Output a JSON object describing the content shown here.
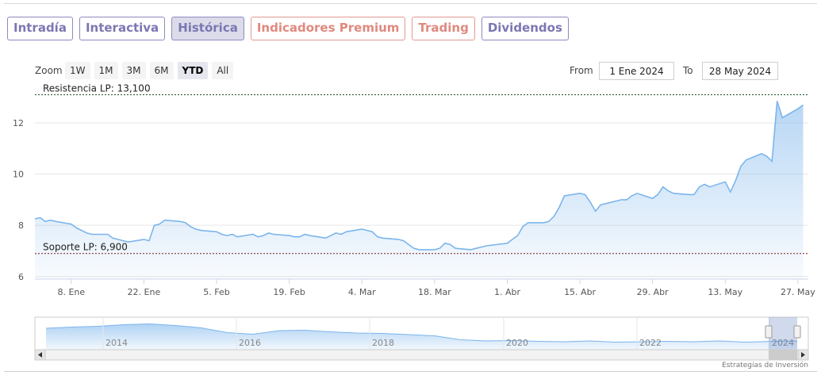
{
  "tabs": [
    {
      "label": "Intradía",
      "style": "normal"
    },
    {
      "label": "Interactiva",
      "style": "normal"
    },
    {
      "label": "Histórica",
      "style": "active"
    },
    {
      "label": "Indicadores Premium",
      "style": "premium"
    },
    {
      "label": "Trading",
      "style": "premium"
    },
    {
      "label": "Dividendos",
      "style": "normal"
    }
  ],
  "zoom": {
    "label": "Zoom",
    "buttons": [
      "1W",
      "1M",
      "3M",
      "6M",
      "YTD",
      "All"
    ],
    "selected": "YTD"
  },
  "range": {
    "from_label": "From",
    "from_value": "1 Ene 2024",
    "to_label": "To",
    "to_value": "28 May 2024"
  },
  "colors": {
    "line": "#7cb5ec",
    "tab_border": "#8e8ac0",
    "premium_tab": "#e0897f",
    "resistance_line": "#1f4f2a",
    "support_line": "#7a1a1a"
  },
  "chart_data": {
    "type": "area",
    "title": "",
    "xlabel": "",
    "ylabel": "",
    "ylim": [
      5.9,
      13.3
    ],
    "x_range": [
      "2024-01-01",
      "2024-05-29"
    ],
    "yticks": [
      6,
      8,
      10,
      12
    ],
    "x_tick_labels": [
      {
        "date": "2024-01-08",
        "label": "8. Ene"
      },
      {
        "date": "2024-01-22",
        "label": "22. Ene"
      },
      {
        "date": "2024-02-05",
        "label": "5. Feb"
      },
      {
        "date": "2024-02-19",
        "label": "19. Feb"
      },
      {
        "date": "2024-03-04",
        "label": "4. Mar"
      },
      {
        "date": "2024-03-18",
        "label": "18. Mar"
      },
      {
        "date": "2024-04-01",
        "label": "1. Abr"
      },
      {
        "date": "2024-04-15",
        "label": "15. Abr"
      },
      {
        "date": "2024-04-29",
        "label": "29. Abr"
      },
      {
        "date": "2024-05-13",
        "label": "13. May"
      },
      {
        "date": "2024-05-27",
        "label": "27. May"
      }
    ],
    "grid": true,
    "legend": "none",
    "annotations": [
      {
        "label": "Resistencia LP: 13,100",
        "value": 13.1
      },
      {
        "label": "Soporte LP: 6,900",
        "value": 6.9
      }
    ],
    "series": [
      {
        "points": [
          [
            "2024-01-01",
            8.25
          ],
          [
            "2024-01-02",
            8.3
          ],
          [
            "2024-01-03",
            8.15
          ],
          [
            "2024-01-04",
            8.2
          ],
          [
            "2024-01-05",
            8.15
          ],
          [
            "2024-01-08",
            8.05
          ],
          [
            "2024-01-09",
            7.9
          ],
          [
            "2024-01-10",
            7.8
          ],
          [
            "2024-01-11",
            7.7
          ],
          [
            "2024-01-12",
            7.65
          ],
          [
            "2024-01-15",
            7.65
          ],
          [
            "2024-01-16",
            7.5
          ],
          [
            "2024-01-17",
            7.45
          ],
          [
            "2024-01-18",
            7.4
          ],
          [
            "2024-01-19",
            7.35
          ],
          [
            "2024-01-22",
            7.45
          ],
          [
            "2024-01-23",
            7.4
          ],
          [
            "2024-01-24",
            8.0
          ],
          [
            "2024-01-25",
            8.05
          ],
          [
            "2024-01-26",
            8.2
          ],
          [
            "2024-01-29",
            8.15
          ],
          [
            "2024-01-30",
            8.1
          ],
          [
            "2024-01-31",
            7.95
          ],
          [
            "2024-02-01",
            7.85
          ],
          [
            "2024-02-02",
            7.8
          ],
          [
            "2024-02-05",
            7.75
          ],
          [
            "2024-02-06",
            7.65
          ],
          [
            "2024-02-07",
            7.6
          ],
          [
            "2024-02-08",
            7.65
          ],
          [
            "2024-02-09",
            7.55
          ],
          [
            "2024-02-12",
            7.65
          ],
          [
            "2024-02-13",
            7.55
          ],
          [
            "2024-02-14",
            7.6
          ],
          [
            "2024-02-15",
            7.7
          ],
          [
            "2024-02-16",
            7.65
          ],
          [
            "2024-02-19",
            7.6
          ],
          [
            "2024-02-20",
            7.55
          ],
          [
            "2024-02-21",
            7.55
          ],
          [
            "2024-02-22",
            7.65
          ],
          [
            "2024-02-23",
            7.6
          ],
          [
            "2024-02-26",
            7.5
          ],
          [
            "2024-02-27",
            7.6
          ],
          [
            "2024-02-28",
            7.7
          ],
          [
            "2024-02-29",
            7.65
          ],
          [
            "2024-03-01",
            7.75
          ],
          [
            "2024-03-04",
            7.85
          ],
          [
            "2024-03-05",
            7.8
          ],
          [
            "2024-03-06",
            7.75
          ],
          [
            "2024-03-07",
            7.55
          ],
          [
            "2024-03-08",
            7.5
          ],
          [
            "2024-03-11",
            7.45
          ],
          [
            "2024-03-12",
            7.4
          ],
          [
            "2024-03-13",
            7.25
          ],
          [
            "2024-03-14",
            7.1
          ],
          [
            "2024-03-15",
            7.05
          ],
          [
            "2024-03-18",
            7.05
          ],
          [
            "2024-03-19",
            7.1
          ],
          [
            "2024-03-20",
            7.3
          ],
          [
            "2024-03-21",
            7.25
          ],
          [
            "2024-03-22",
            7.1
          ],
          [
            "2024-03-25",
            7.05
          ],
          [
            "2024-03-26",
            7.1
          ],
          [
            "2024-03-27",
            7.15
          ],
          [
            "2024-03-28",
            7.2
          ],
          [
            "2024-04-01",
            7.3
          ],
          [
            "2024-04-02",
            7.45
          ],
          [
            "2024-04-03",
            7.6
          ],
          [
            "2024-04-04",
            7.95
          ],
          [
            "2024-04-05",
            8.1
          ],
          [
            "2024-04-08",
            8.1
          ],
          [
            "2024-04-09",
            8.15
          ],
          [
            "2024-04-10",
            8.35
          ],
          [
            "2024-04-11",
            8.7
          ],
          [
            "2024-04-12",
            9.15
          ],
          [
            "2024-04-15",
            9.25
          ],
          [
            "2024-04-16",
            9.2
          ],
          [
            "2024-04-17",
            8.9
          ],
          [
            "2024-04-18",
            8.55
          ],
          [
            "2024-04-19",
            8.8
          ],
          [
            "2024-04-22",
            8.95
          ],
          [
            "2024-04-23",
            9.0
          ],
          [
            "2024-04-24",
            9.0
          ],
          [
            "2024-04-25",
            9.15
          ],
          [
            "2024-04-26",
            9.25
          ],
          [
            "2024-04-29",
            9.05
          ],
          [
            "2024-04-30",
            9.2
          ],
          [
            "2024-05-01",
            9.5
          ],
          [
            "2024-05-02",
            9.35
          ],
          [
            "2024-05-03",
            9.25
          ],
          [
            "2024-05-06",
            9.2
          ],
          [
            "2024-05-07",
            9.2
          ],
          [
            "2024-05-08",
            9.5
          ],
          [
            "2024-05-09",
            9.6
          ],
          [
            "2024-05-10",
            9.5
          ],
          [
            "2024-05-13",
            9.7
          ],
          [
            "2024-05-14",
            9.3
          ],
          [
            "2024-05-15",
            9.75
          ],
          [
            "2024-05-16",
            10.3
          ],
          [
            "2024-05-17",
            10.55
          ],
          [
            "2024-05-20",
            10.8
          ],
          [
            "2024-05-21",
            10.7
          ],
          [
            "2024-05-22",
            10.5
          ],
          [
            "2024-05-23",
            12.85
          ],
          [
            "2024-05-24",
            12.2
          ],
          [
            "2024-05-27",
            12.55
          ],
          [
            "2024-05-28",
            12.7
          ]
        ]
      }
    ],
    "navigator": {
      "year_labels": [
        "2014",
        "2016",
        "2018",
        "2020",
        "2022",
        "2024"
      ],
      "values": [
        10.5,
        10.8,
        11.0,
        11.4,
        11.6,
        11.2,
        10.6,
        9.4,
        9.0,
        9.9,
        10.0,
        9.6,
        9.3,
        9.2,
        8.9,
        8.6,
        7.6,
        7.3,
        7.4,
        7.2,
        7.1,
        7.3,
        7.0,
        7.1,
        7.2,
        7.1,
        7.3,
        7.0,
        7.2,
        7.3
      ]
    }
  },
  "credit": "Estrategias de Inversión"
}
